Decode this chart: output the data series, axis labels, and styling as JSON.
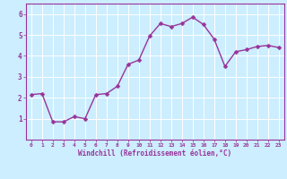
{
  "x": [
    0,
    1,
    2,
    3,
    4,
    5,
    6,
    7,
    8,
    9,
    10,
    11,
    12,
    13,
    14,
    15,
    16,
    17,
    18,
    19,
    20,
    21,
    22,
    23
  ],
  "y": [
    2.15,
    2.2,
    0.85,
    0.85,
    1.1,
    1.0,
    2.15,
    2.2,
    2.55,
    3.6,
    3.8,
    4.95,
    5.55,
    5.4,
    5.55,
    5.85,
    5.5,
    4.8,
    3.5,
    4.2,
    4.3,
    4.45,
    4.5,
    4.4
  ],
  "line_color": "#993399",
  "marker_color": "#993399",
  "bg_color": "#cceeff",
  "grid_color": "#ffffff",
  "xlabel": "Windchill (Refroidissement éolien,°C)",
  "xlim": [
    -0.5,
    23.5
  ],
  "ylim": [
    0,
    6.5
  ],
  "yticks": [
    1,
    2,
    3,
    4,
    5,
    6
  ],
  "xticks": [
    0,
    1,
    2,
    3,
    4,
    5,
    6,
    7,
    8,
    9,
    10,
    11,
    12,
    13,
    14,
    15,
    16,
    17,
    18,
    19,
    20,
    21,
    22,
    23
  ],
  "tick_color": "#993399",
  "line_width": 1.0,
  "marker_size": 2.5
}
